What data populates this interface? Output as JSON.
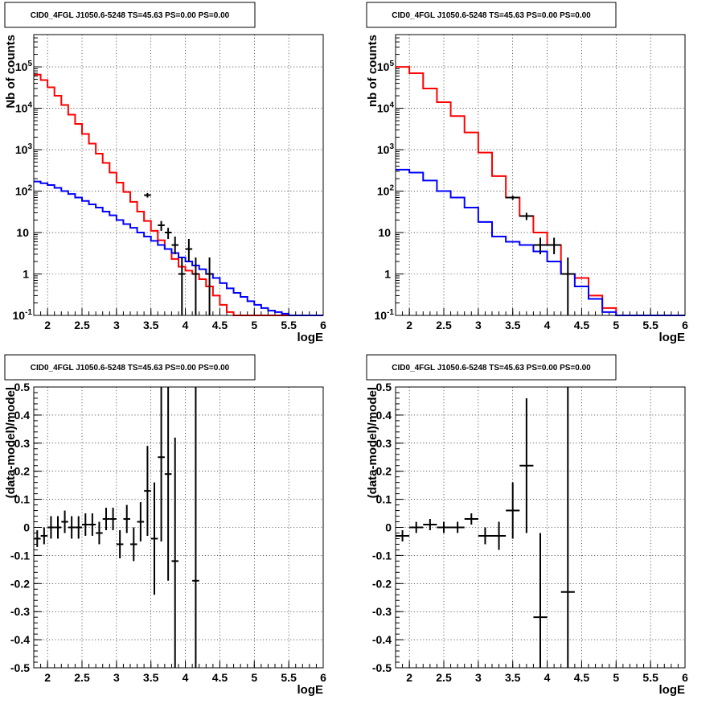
{
  "chart_data": [
    {
      "type": "line",
      "title": "CID0_4FGL J1050.6-5248 TS=45.63 PS=0.00 PS=0.00",
      "xlabel": "logE",
      "ylabel": "Nb of counts",
      "log_y": true,
      "xlim": [
        1.8,
        6.0
      ],
      "ylim": [
        0.1,
        600000
      ],
      "grid": true,
      "x_ticks": [
        "2",
        "2.5",
        "3",
        "3.5",
        "4",
        "4.5",
        "5",
        "5.5",
        "6"
      ],
      "y_ticks": [
        "10^-1",
        "1",
        "10",
        "10^2",
        "10^3",
        "10^4",
        "10^5"
      ],
      "bin_edges": [
        1.8,
        1.9,
        2.0,
        2.1,
        2.2,
        2.3,
        2.4,
        2.5,
        2.6,
        2.7,
        2.8,
        2.9,
        3.0,
        3.1,
        3.2,
        3.3,
        3.4,
        3.5,
        3.6,
        3.7,
        3.8,
        3.9,
        4.0,
        4.1,
        4.2,
        4.3,
        4.4,
        4.5,
        4.6,
        4.7,
        4.8,
        4.9,
        5.0,
        5.1,
        5.2,
        5.3,
        5.4,
        5.5,
        5.6,
        5.7,
        5.8,
        5.9,
        6.0
      ],
      "series": [
        {
          "color": "#ff0000",
          "kind": "step",
          "values": [
            65000,
            48000,
            32000,
            20000,
            12000,
            7000,
            4200,
            2400,
            1400,
            800,
            480,
            280,
            160,
            95,
            55,
            32,
            19,
            11,
            6.5,
            4,
            2.3,
            1.5,
            1.2,
            1.0,
            0.75,
            0.5,
            0.3,
            0.18,
            0.12,
            0.1,
            0.1,
            0.1,
            0.1,
            0.1,
            0.1,
            0.1,
            0.1,
            0.1,
            0.1,
            0.1,
            0.1,
            0.1
          ]
        },
        {
          "color": "#0000ff",
          "kind": "step",
          "values": [
            170,
            155,
            140,
            120,
            100,
            85,
            70,
            58,
            48,
            40,
            32,
            26,
            20,
            16,
            13,
            10,
            8,
            6.3,
            5,
            4,
            3.2,
            2.5,
            2,
            1.6,
            1.3,
            1,
            0.8,
            0.6,
            0.45,
            0.35,
            0.28,
            0.22,
            0.18,
            0.15,
            0.13,
            0.12,
            0.11,
            0.1,
            0.1,
            0.1,
            0.1,
            0.1
          ]
        },
        {
          "color": "#000000",
          "kind": "points",
          "x": [
            3.45,
            3.65,
            3.75,
            3.85,
            3.95,
            4.05,
            4.15,
            4.35
          ],
          "y": [
            80,
            15,
            10,
            5,
            1,
            4,
            1,
            1
          ],
          "err_low": [
            10,
            4,
            3,
            2,
            0.9,
            2,
            0.9,
            0.9
          ],
          "err_high": [
            10,
            4,
            3,
            3,
            1.5,
            3,
            1.5,
            1.5
          ]
        }
      ]
    },
    {
      "type": "line",
      "title": "CID0_4FGL J1050.6-5248 TS=45.63 PS=0.00 PS=0.00",
      "xlabel": "logE",
      "ylabel": "nb of counts",
      "log_y": true,
      "xlim": [
        1.8,
        6.0
      ],
      "ylim": [
        0.1,
        600000
      ],
      "grid": true,
      "x_ticks": [
        "2",
        "2.5",
        "3",
        "3.5",
        "4",
        "4.5",
        "5",
        "5.5",
        "6"
      ],
      "y_ticks": [
        "10^-1",
        "1",
        "10",
        "10^2",
        "10^3",
        "10^4",
        "10^5"
      ],
      "bin_edges": [
        1.8,
        2.0,
        2.2,
        2.4,
        2.6,
        2.8,
        3.0,
        3.2,
        3.4,
        3.6,
        3.8,
        4.0,
        4.2,
        4.4,
        4.6,
        4.8,
        5.0,
        5.2,
        5.4,
        5.6,
        5.8,
        6.0
      ],
      "series": [
        {
          "color": "#ff0000",
          "kind": "step",
          "values": [
            100000,
            70000,
            30000,
            14000,
            6500,
            2600,
            850,
            230,
            70,
            25,
            10,
            5,
            1,
            0.8,
            0.3,
            0.15,
            0.1,
            0.1,
            0.1,
            0.1,
            0.1
          ]
        },
        {
          "color": "#0000ff",
          "kind": "step",
          "values": [
            330,
            280,
            180,
            100,
            70,
            40,
            18,
            8,
            6,
            5,
            3.5,
            2,
            1,
            0.5,
            0.25,
            0.12,
            0.1,
            0.1,
            0.1,
            0.1,
            0.1
          ]
        },
        {
          "color": "#000000",
          "kind": "points",
          "x": [
            3.5,
            3.7,
            3.9,
            4.1,
            4.3
          ],
          "y": [
            70,
            25,
            5,
            5,
            1
          ],
          "err_low": [
            8,
            5,
            2,
            2,
            0.9
          ],
          "err_high": [
            8,
            5,
            2.5,
            2.5,
            1.5
          ]
        }
      ]
    },
    {
      "type": "scatter",
      "title": "CID0_4FGL J1050.6-5248 TS=45.63 PS=0.00 PS=0.00",
      "xlabel": "logE",
      "ylabel": "(data-model)/model",
      "xlim": [
        1.8,
        6.0
      ],
      "ylim": [
        -0.5,
        0.5
      ],
      "grid": true,
      "x_ticks": [
        "2",
        "2.5",
        "3",
        "3.5",
        "4",
        "4.5",
        "5",
        "5.5",
        "6"
      ],
      "y_ticks": [
        "-0.5",
        "-0.4",
        "-0.3",
        "-0.2",
        "-0.1",
        "0",
        "0.1",
        "0.2",
        "0.3",
        "0.4",
        "0.5"
      ],
      "series": [
        {
          "color": "#000000",
          "x": [
            1.85,
            1.95,
            2.05,
            2.15,
            2.25,
            2.35,
            2.45,
            2.55,
            2.65,
            2.75,
            2.85,
            2.95,
            3.05,
            3.15,
            3.25,
            3.35,
            3.45,
            3.55,
            3.65,
            3.75,
            3.85,
            4.15
          ],
          "y": [
            -0.04,
            -0.03,
            0.0,
            0.0,
            0.02,
            0.0,
            0.0,
            0.01,
            0.01,
            -0.02,
            0.03,
            0.03,
            -0.06,
            0.03,
            -0.06,
            0.02,
            0.13,
            -0.04,
            0.25,
            0.19,
            -0.12,
            -0.19
          ],
          "err": [
            0.03,
            0.03,
            0.04,
            0.04,
            0.04,
            0.04,
            0.04,
            0.04,
            0.04,
            0.04,
            0.04,
            0.04,
            0.05,
            0.05,
            0.06,
            0.07,
            0.16,
            0.2,
            0.3,
            0.38,
            0.44,
            0.9
          ]
        }
      ]
    },
    {
      "type": "scatter",
      "title": "CID0_4FGL J1050.6-5248 TS=45.63 PS=0.00 PS=0.00",
      "xlabel": "logE",
      "ylabel": "(data-model)/model",
      "xlim": [
        1.8,
        6.0
      ],
      "ylim": [
        -0.5,
        0.5
      ],
      "grid": true,
      "x_ticks": [
        "2",
        "2.5",
        "3",
        "3.5",
        "4",
        "4.5",
        "5",
        "5.5",
        "6"
      ],
      "y_ticks": [
        "-0.5",
        "-0.4",
        "-0.3",
        "-0.2",
        "-0.1",
        "0",
        "0.1",
        "0.2",
        "0.3",
        "0.4",
        "0.5"
      ],
      "series": [
        {
          "color": "#000000",
          "x": [
            1.9,
            2.1,
            2.3,
            2.5,
            2.7,
            2.9,
            3.1,
            3.3,
            3.5,
            3.7,
            3.9,
            4.3
          ],
          "y": [
            -0.03,
            0.0,
            0.01,
            0.0,
            0.0,
            0.03,
            -0.03,
            -0.03,
            0.06,
            0.22,
            -0.32,
            -0.23
          ],
          "err": [
            0.02,
            0.02,
            0.02,
            0.02,
            0.02,
            0.02,
            0.03,
            0.05,
            0.1,
            0.24,
            0.3,
            0.9
          ]
        }
      ]
    }
  ]
}
